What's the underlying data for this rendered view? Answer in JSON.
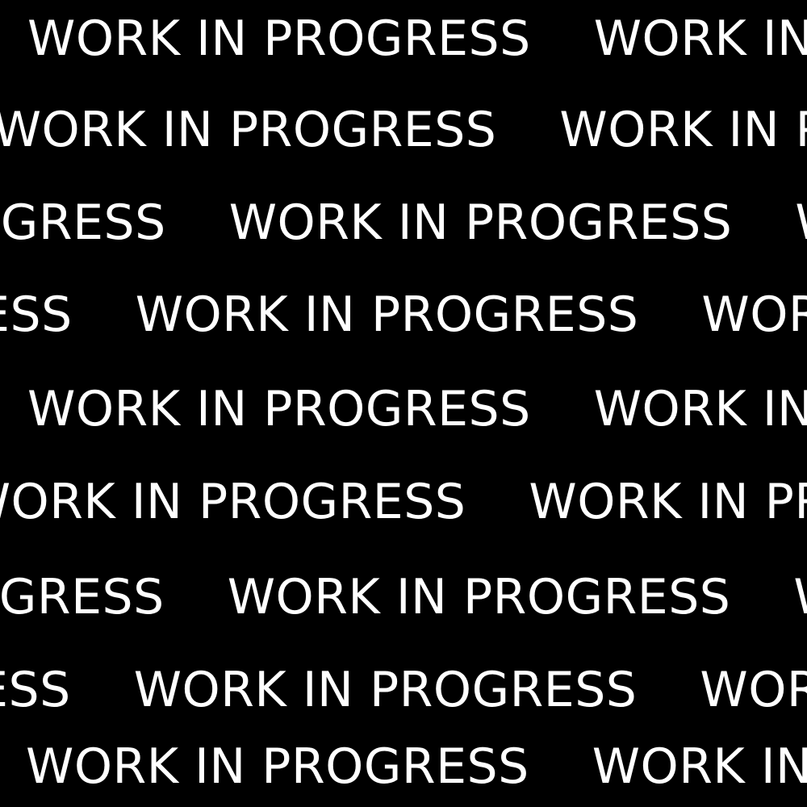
{
  "text": "WORK IN PROGRESS",
  "colors": {
    "background": "#000000",
    "text": "#ffffff"
  }
}
